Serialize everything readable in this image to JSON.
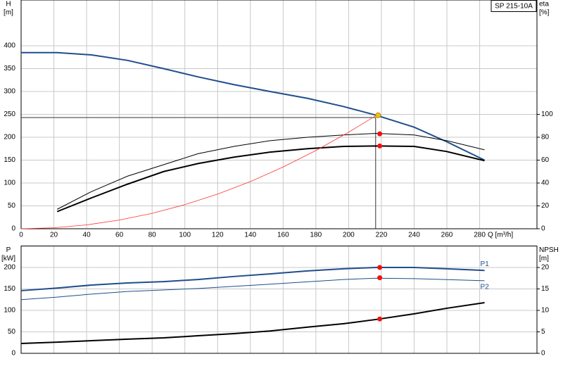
{
  "chart_data": [
    {
      "type": "line",
      "xlabel": "Q [m³/h]",
      "ylabel": "H",
      "yunit": "[m]",
      "y2label": "eta",
      "y2unit": "[%]",
      "tag": "SP 215-10A",
      "xlim": [
        0,
        315
      ],
      "xticks": [
        0,
        20,
        40,
        60,
        80,
        100,
        120,
        140,
        160,
        180,
        200,
        220,
        240,
        260,
        280
      ],
      "ylim": [
        0,
        500
      ],
      "yticks": [
        0,
        50,
        100,
        150,
        200,
        250,
        300,
        350,
        400
      ],
      "y2lim": [
        0,
        200
      ],
      "y2ticks": [
        0,
        20,
        40,
        60,
        80,
        100
      ],
      "grid": true,
      "series": [
        {
          "color": "#1f4e8c",
          "width": 2,
          "x": [
            0,
            22,
            43,
            65,
            87,
            108,
            130,
            152,
            175,
            197,
            217,
            240,
            260,
            283
          ],
          "values": [
            385,
            385,
            380,
            368,
            350,
            332,
            315,
            300,
            285,
            267,
            248,
            222,
            190,
            150
          ]
        },
        {
          "color": "#000000",
          "width": 1,
          "axis": "y2",
          "x": [
            22,
            43,
            65,
            87,
            108,
            130,
            152,
            175,
            197,
            217,
            240,
            260,
            283
          ],
          "values": [
            17,
            32.5,
            46,
            56,
            65.6,
            72,
            77,
            80,
            82,
            83.4,
            82,
            77,
            69
          ]
        },
        {
          "color": "#000000",
          "width": 2,
          "axis": "y2",
          "x": [
            22,
            43,
            65,
            87,
            108,
            130,
            152,
            175,
            197,
            217,
            240,
            260,
            283
          ],
          "values": [
            15,
            27,
            39,
            50,
            57,
            62.6,
            67,
            70,
            72,
            72.4,
            72,
            67.5,
            59.5
          ]
        },
        {
          "color": "#ff3333",
          "width": 0.8,
          "x": [
            0,
            20,
            40,
            60,
            80,
            100,
            120,
            140,
            160,
            180,
            200,
            217
          ],
          "values": [
            0,
            2.1,
            8.4,
            19,
            33.7,
            52.7,
            75.8,
            103,
            135,
            171,
            211,
            248
          ]
        }
      ],
      "reference_lines": {
        "x": 216.5,
        "y": 243
      },
      "points": [
        {
          "x": 218,
          "y": 248,
          "color": "#f5c400"
        },
        {
          "x": 219,
          "y": 83,
          "axis": "y2",
          "color": "#ee1111"
        },
        {
          "x": 219,
          "y": 72.4,
          "axis": "y2",
          "color": "#ee1111"
        }
      ]
    },
    {
      "type": "line",
      "ylabel": "P",
      "yunit": "[kW]",
      "y2label": "NPSH",
      "y2unit": "[m]",
      "xlim": [
        0,
        315
      ],
      "ylim": [
        0,
        250
      ],
      "yticks": [
        0,
        50,
        100,
        150,
        200
      ],
      "y2lim": [
        0,
        25
      ],
      "y2ticks": [
        0,
        5,
        10,
        15,
        20
      ],
      "grid": true,
      "series": [
        {
          "name": "P1",
          "color": "#1f4e8c",
          "width": 2,
          "x": [
            0,
            22,
            43,
            65,
            87,
            108,
            130,
            152,
            175,
            197,
            217,
            240,
            260,
            283
          ],
          "values": [
            146,
            152,
            159,
            164,
            167,
            172,
            179,
            185,
            192,
            197,
            200,
            200,
            197,
            193
          ]
        },
        {
          "name": "P2",
          "color": "#1f4e8c",
          "width": 1,
          "x": [
            0,
            22,
            43,
            65,
            108,
            152,
            197,
            217,
            240,
            283
          ],
          "values": [
            125,
            131,
            138,
            144,
            151,
            161,
            172,
            175,
            174,
            169
          ]
        },
        {
          "color": "#000000",
          "width": 2,
          "axis": "y2",
          "x": [
            0,
            22,
            43,
            65,
            87,
            108,
            130,
            152,
            175,
            197,
            217,
            240,
            260,
            283
          ],
          "values": [
            2.3,
            2.6,
            2.95,
            3.3,
            3.6,
            4.1,
            4.6,
            5.2,
            6.1,
            6.9,
            7.9,
            9.2,
            10.5,
            11.8
          ]
        }
      ],
      "points": [
        {
          "x": 219,
          "y": 200,
          "color": "#ee1111"
        },
        {
          "x": 219,
          "y": 176,
          "color": "#ee1111"
        },
        {
          "x": 219,
          "y": 8,
          "axis": "y2",
          "color": "#ee1111"
        }
      ]
    }
  ]
}
